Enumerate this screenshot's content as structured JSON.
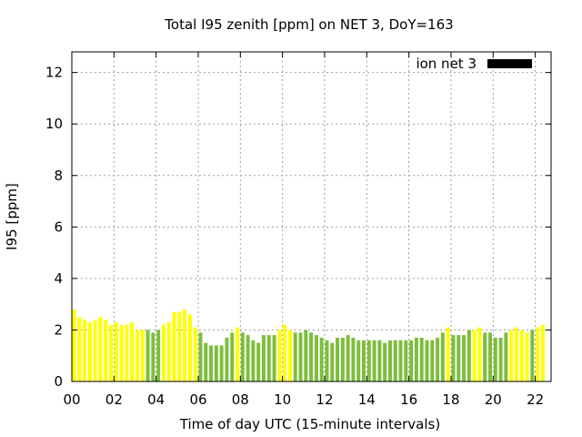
{
  "chart_data": {
    "type": "bar",
    "title": "Total I95 zenith [ppm] on NET 3, DoY=163",
    "xlabel": "Time of day UTC (15-minute intervals)",
    "ylabel": "I95 [ppm]",
    "xlim": [
      0,
      22.75
    ],
    "ylim": [
      0,
      12.8
    ],
    "x_ticks": [
      0,
      2,
      4,
      6,
      8,
      10,
      12,
      14,
      16,
      18,
      20,
      22
    ],
    "x_tick_labels": [
      "00",
      "02",
      "04",
      "06",
      "08",
      "10",
      "12",
      "14",
      "16",
      "18",
      "20",
      "22"
    ],
    "y_ticks": [
      0,
      2,
      4,
      6,
      8,
      10,
      12
    ],
    "y_tick_labels": [
      "0",
      "2",
      "4",
      "6",
      "8",
      "10",
      "12"
    ],
    "grid": true,
    "legend": {
      "label": "ion net 3",
      "color": "#000000",
      "placement": "top-right"
    },
    "bar_interval_hours": 0.25,
    "colors": {
      "green": "#7dbe3c",
      "yellow": "#ffff00"
    },
    "series": [
      {
        "start": 0,
        "color": "yellow",
        "values": [
          2.8,
          2.5,
          2.4,
          2.3,
          2.4,
          2.5,
          2.4,
          2.2,
          2.3,
          2.2,
          2.2,
          2.3,
          2.0,
          2.0
        ]
      },
      {
        "start": 3.5,
        "color": "green",
        "values": [
          2.0,
          1.9,
          2.0
        ]
      },
      {
        "start": 4.25,
        "color": "yellow",
        "values": [
          2.2,
          2.3,
          2.7,
          2.7,
          2.8,
          2.6,
          2.1
        ]
      },
      {
        "start": 6.0,
        "color": "green",
        "values": [
          1.9,
          1.5,
          1.4,
          1.4,
          1.4,
          1.7,
          1.9
        ]
      },
      {
        "start": 7.75,
        "color": "yellow",
        "values": [
          2.1
        ]
      },
      {
        "start": 8.0,
        "color": "green",
        "values": [
          1.9,
          1.8,
          1.6,
          1.5,
          1.8,
          1.8,
          1.8
        ]
      },
      {
        "start": 9.75,
        "color": "yellow",
        "values": [
          2.0,
          2.2,
          2.0
        ]
      },
      {
        "start": 10.5,
        "color": "green",
        "values": [
          1.9,
          1.9,
          2.0
        ]
      },
      {
        "start": 11.25,
        "color": "green",
        "values": [
          1.9,
          1.8,
          1.7,
          1.6,
          1.5,
          1.7,
          1.7,
          1.8,
          1.7,
          1.6,
          1.6,
          1.6,
          1.6,
          1.6,
          1.5,
          1.6,
          1.6,
          1.6,
          1.6,
          1.6,
          1.7,
          1.7,
          1.6,
          1.6,
          1.7,
          1.9
        ]
      },
      {
        "start": 17.75,
        "color": "yellow",
        "values": [
          2.1
        ]
      },
      {
        "start": 18.0,
        "color": "green",
        "values": [
          1.8,
          1.8,
          1.8,
          2.0
        ]
      },
      {
        "start": 19.0,
        "color": "yellow",
        "values": [
          2.0,
          2.1
        ]
      },
      {
        "start": 19.5,
        "color": "green",
        "values": [
          1.9,
          1.9,
          1.7,
          1.7,
          1.9
        ]
      },
      {
        "start": 20.75,
        "color": "yellow",
        "values": [
          2.0,
          2.1,
          2.0,
          1.9
        ]
      },
      {
        "start": 21.75,
        "color": "green",
        "values": [
          2.0
        ]
      },
      {
        "start": 22.0,
        "color": "yellow",
        "values": [
          2.1,
          2.2
        ]
      }
    ]
  }
}
